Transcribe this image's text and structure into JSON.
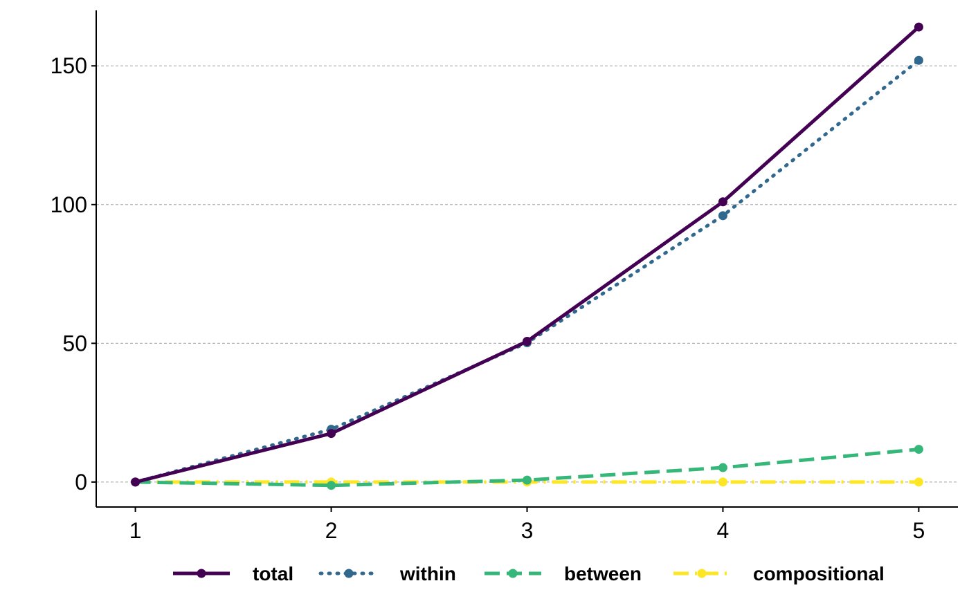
{
  "chart_data": {
    "type": "line",
    "title": "",
    "xlabel": "",
    "ylabel": "",
    "x": [
      1,
      2,
      3,
      4,
      5
    ],
    "xlim": [
      0.8,
      5.2
    ],
    "ylim": [
      -9,
      170
    ],
    "xticks": [
      1,
      2,
      3,
      4,
      5
    ],
    "yticks": [
      0,
      50,
      100,
      150
    ],
    "grid": "horizontal-dashed",
    "legend_position": "bottom",
    "series": [
      {
        "name": "total",
        "values": [
          0,
          17.5,
          50.7,
          101,
          164
        ],
        "color": "#440154",
        "linestyle": "solid"
      },
      {
        "name": "within",
        "values": [
          0,
          19,
          50.2,
          96,
          152
        ],
        "color": "#31688E",
        "linestyle": "dotted"
      },
      {
        "name": "between",
        "values": [
          0,
          -1.2,
          0.7,
          5.2,
          11.8
        ],
        "color": "#35B779",
        "linestyle": "dashed"
      },
      {
        "name": "compositional",
        "values": [
          0,
          0,
          0,
          0,
          0
        ],
        "color": "#FDE725",
        "linestyle": "dashdot"
      }
    ]
  }
}
